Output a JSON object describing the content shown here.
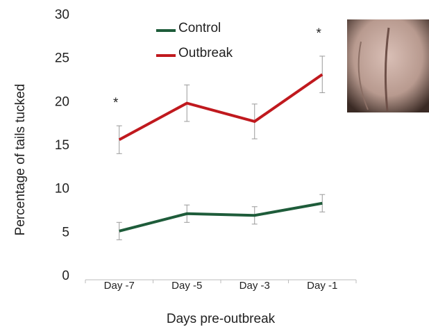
{
  "chart_data": {
    "type": "line",
    "y_label": "Percentage of tails tucked",
    "x_label": "Days pre-outbreak",
    "categories": [
      "Day -7",
      "Day -5",
      "Day -3",
      "Day -1"
    ],
    "series": [
      {
        "name": "Control",
        "color": "#1e5c3a",
        "values": [
          5.2,
          7.2,
          7.0,
          8.4
        ],
        "errors": [
          1.0,
          1.0,
          1.0,
          1.0
        ]
      },
      {
        "name": "Outbreak",
        "color": "#c0191e",
        "values": [
          15.7,
          19.9,
          17.8,
          23.2
        ],
        "errors": [
          1.6,
          2.1,
          2.0,
          2.1
        ]
      }
    ],
    "annotations": [
      {
        "text": "*",
        "category": 0
      },
      {
        "text": "*",
        "category": 3
      }
    ],
    "ylim": [
      0,
      30
    ],
    "yticks": [
      0,
      5,
      10,
      15,
      20,
      25,
      30
    ],
    "grid": false,
    "legend": "top"
  }
}
